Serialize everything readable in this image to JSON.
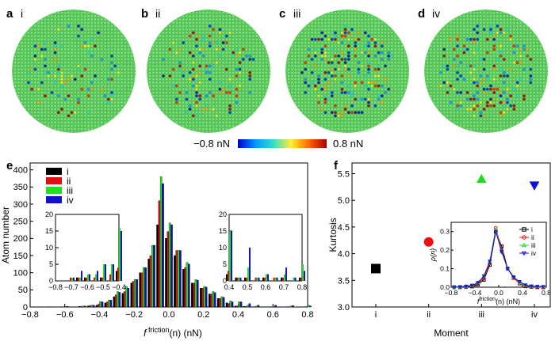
{
  "panels": [
    {
      "letter": "a",
      "roman": "i"
    },
    {
      "letter": "b",
      "roman": "ii"
    },
    {
      "letter": "c",
      "roman": "iii"
    },
    {
      "letter": "d",
      "roman": "iv"
    }
  ],
  "colorbar": {
    "min_label": "−0.8 nN",
    "max_label": "0.8 nN",
    "stops": [
      "#0000cc",
      "#0099ff",
      "#33ddcc",
      "#ffee33",
      "#ff6600",
      "#aa0000"
    ]
  },
  "colors": {
    "i": "#000000",
    "ii": "#dd1111",
    "iii": "#22dd22",
    "iv": "#1111cc",
    "atom_base": "#66dd66"
  },
  "chart_data": [
    {
      "panel": "e",
      "type": "bar",
      "xlabel_main": "f",
      "xlabel_sup": "friction",
      "xlabel_rest": "(n) (nN)",
      "ylabel": "Atom number",
      "xlim": [
        -0.8,
        0.8
      ],
      "ylim": [
        0,
        420
      ],
      "xticks": [
        "−0.8",
        "−0.6",
        "−0.4",
        "−0.2",
        "0.0",
        "0.2",
        "0.4",
        "0.6",
        "0.8"
      ],
      "yticks": [
        "0",
        "50",
        "100",
        "150",
        "200",
        "250",
        "300",
        "350",
        "400"
      ],
      "legend": [
        "i",
        "ii",
        "iii",
        "iv"
      ],
      "x": [
        -0.7,
        -0.6,
        -0.5,
        -0.45,
        -0.4,
        -0.35,
        -0.3,
        -0.25,
        -0.2,
        -0.15,
        -0.1,
        -0.05,
        0.0,
        0.05,
        0.1,
        0.15,
        0.2,
        0.25,
        0.3,
        0.35,
        0.4,
        0.45,
        0.5,
        0.6,
        0.7,
        0.8
      ],
      "series": [
        {
          "name": "i",
          "values": [
            0,
            1,
            2,
            3,
            5,
            12,
            30,
            40,
            70,
            100,
            140,
            240,
            200,
            150,
            110,
            70,
            55,
            38,
            25,
            12,
            3,
            2,
            1,
            1,
            1,
            1
          ]
        },
        {
          "name": "ii",
          "values": [
            0,
            1,
            2,
            4,
            8,
            15,
            35,
            45,
            75,
            100,
            150,
            310,
            220,
            165,
            115,
            70,
            55,
            38,
            25,
            10,
            3,
            2,
            1,
            1,
            1,
            1
          ]
        },
        {
          "name": "iii",
          "values": [
            1,
            2,
            3,
            5,
            16,
            20,
            45,
            60,
            80,
            115,
            180,
            380,
            245,
            165,
            130,
            80,
            60,
            45,
            30,
            18,
            15,
            5,
            3,
            3,
            3,
            5
          ]
        },
        {
          "name": "iv",
          "values": [
            1,
            2,
            3,
            5,
            15,
            20,
            43,
            55,
            80,
            115,
            180,
            360,
            240,
            165,
            125,
            78,
            58,
            42,
            28,
            15,
            15,
            10,
            5,
            5,
            4,
            3
          ]
        }
      ],
      "inset_left": {
        "xlim": [
          -0.8,
          -0.4
        ],
        "ylim": [
          0,
          20
        ],
        "xticks": [
          "−0.8",
          "−0.7",
          "−0.6",
          "−0.5",
          "−0.4"
        ],
        "yticks": [
          "0",
          "5",
          "10",
          "15",
          "20"
        ],
        "x": [
          -0.75,
          -0.7,
          -0.65,
          -0.6,
          -0.55,
          -0.5,
          -0.45,
          -0.4
        ],
        "series": [
          {
            "name": "i",
            "values": [
              0,
              0,
              1,
              1,
              0,
              1,
              0,
              3
            ]
          },
          {
            "name": "ii",
            "values": [
              0,
              1,
              1,
              1,
              1,
              1,
              2,
              4
            ]
          },
          {
            "name": "iii",
            "values": [
              0,
              1,
              1,
              2,
              2,
              5,
              5,
              16
            ]
          },
          {
            "name": "iv",
            "values": [
              0,
              1,
              3,
              2,
              3,
              5,
              5,
              15
            ]
          }
        ]
      },
      "inset_right": {
        "xlim": [
          0.4,
          0.8
        ],
        "ylim": [
          0,
          20
        ],
        "xticks": [
          "0.4",
          "0.5",
          "0.6",
          "0.7",
          "0.8"
        ],
        "yticks": [
          "0",
          "5",
          "10",
          "15",
          "20"
        ],
        "x": [
          0.4,
          0.45,
          0.5,
          0.55,
          0.6,
          0.65,
          0.7,
          0.75,
          0.8
        ],
        "series": [
          {
            "name": "i",
            "values": [
              2,
              1,
              1,
              0,
              1,
              0,
              1,
              0,
              1
            ]
          },
          {
            "name": "ii",
            "values": [
              3,
              1,
              1,
              1,
              1,
              1,
              1,
              0,
              1
            ]
          },
          {
            "name": "iii",
            "values": [
              15,
              1,
              4,
              1,
              2,
              1,
              2,
              1,
              5
            ]
          },
          {
            "name": "iv",
            "values": [
              15,
              1,
              10,
              1,
              2,
              1,
              4,
              1,
              3
            ]
          }
        ]
      }
    },
    {
      "panel": "f",
      "type": "scatter",
      "xlabel": "Moment",
      "ylabel": "Kurtosis",
      "ylim": [
        3.0,
        5.7
      ],
      "categories": [
        "i",
        "ii",
        "iii",
        "iv"
      ],
      "yticks": [
        "3.0",
        "3.5",
        "4.0",
        "4.5",
        "5.0",
        "5.5"
      ],
      "points": [
        {
          "category": "i",
          "value": 3.72,
          "marker": "square",
          "color": "#000000"
        },
        {
          "category": "ii",
          "value": 4.22,
          "marker": "circle",
          "color": "#ee1111"
        },
        {
          "category": "iii",
          "value": 5.4,
          "marker": "triangle-up",
          "color": "#22dd22"
        },
        {
          "category": "iv",
          "value": 5.28,
          "marker": "triangle-down",
          "color": "#1111dd"
        }
      ],
      "inset": {
        "type": "line",
        "xlabel_main": "f",
        "xlabel_sup": "friction",
        "xlabel_rest": "(n) (nN)",
        "ylabel": "ρ(n)",
        "xlim": [
          -0.8,
          0.8
        ],
        "ylim": [
          0,
          0.35
        ],
        "xticks": [
          "−0.8",
          "−0.4",
          "0.0",
          "0.4",
          "0.8"
        ],
        "yticks": [
          "0.0",
          "0.1",
          "0.2",
          "0.3"
        ],
        "legend": [
          "i",
          "ii",
          "iii",
          "iv"
        ],
        "x": [
          -0.75,
          -0.65,
          -0.55,
          -0.45,
          -0.35,
          -0.25,
          -0.15,
          -0.05,
          0.05,
          0.15,
          0.25,
          0.35,
          0.45,
          0.55,
          0.65,
          0.75
        ],
        "series": [
          {
            "name": "i",
            "marker": "square",
            "values": [
              0.0,
              0.0,
              0.002,
              0.004,
              0.015,
              0.04,
              0.12,
              0.3,
              0.22,
              0.1,
              0.05,
              0.02,
              0.005,
              0.002,
              0.0,
              0.0
            ]
          },
          {
            "name": "ii",
            "marker": "circle",
            "values": [
              0.0,
              0.001,
              0.003,
              0.006,
              0.02,
              0.05,
              0.13,
              0.32,
              0.2,
              0.1,
              0.05,
              0.02,
              0.006,
              0.003,
              0.001,
              0.0
            ]
          },
          {
            "name": "iii",
            "marker": "triangle-up",
            "values": [
              0.0,
              0.002,
              0.005,
              0.01,
              0.025,
              0.06,
              0.14,
              0.31,
              0.19,
              0.1,
              0.055,
              0.025,
              0.01,
              0.005,
              0.004,
              0.004
            ]
          },
          {
            "name": "iv",
            "marker": "triangle-down",
            "values": [
              0.0,
              0.002,
              0.005,
              0.01,
              0.025,
              0.06,
              0.14,
              0.3,
              0.19,
              0.1,
              0.055,
              0.03,
              0.012,
              0.006,
              0.004,
              0.003
            ]
          }
        ]
      }
    }
  ]
}
